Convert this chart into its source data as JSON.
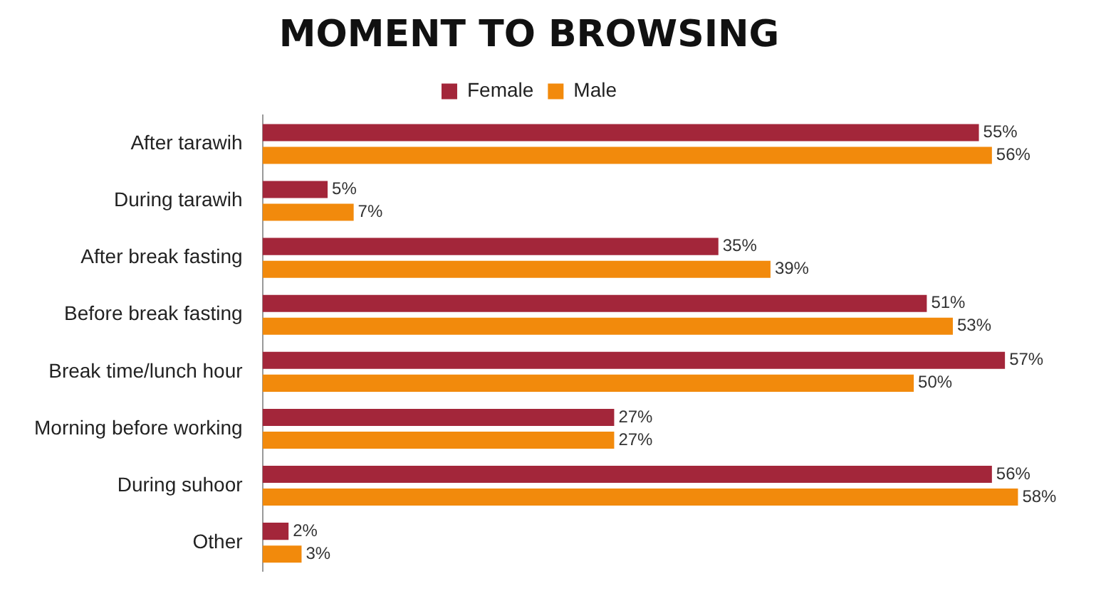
{
  "chart_data": {
    "type": "bar",
    "orientation": "horizontal",
    "title": "MOMENT TO BROWSING",
    "categories": [
      "After tarawih",
      "During tarawih",
      "After break fasting",
      "Before break fasting",
      "Break time/lunch hour",
      "Morning before working",
      "During suhoor",
      "Other"
    ],
    "series": [
      {
        "name": "Female",
        "color": "#a3263a",
        "values": [
          55,
          5,
          35,
          51,
          57,
          27,
          56,
          2
        ],
        "value_labels": [
          "55%",
          "5%",
          "35%",
          "51%",
          "57%",
          "27%",
          "56%",
          "2%"
        ]
      },
      {
        "name": "Male",
        "color": "#f28a0c",
        "values": [
          56,
          7,
          39,
          53,
          50,
          27,
          58,
          3
        ],
        "value_labels": [
          "56%",
          "7%",
          "39%",
          "53%",
          "50%",
          "27%",
          "58%",
          "3%"
        ]
      }
    ],
    "tick_labels": "y",
    "grid": false,
    "legend": "top"
  }
}
